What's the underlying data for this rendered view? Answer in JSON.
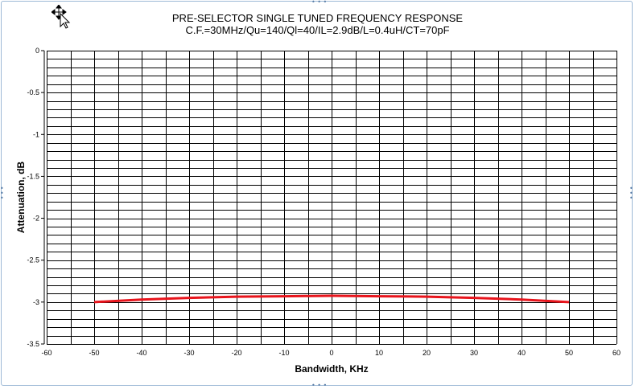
{
  "chart_data": {
    "type": "line",
    "title": "PRE-SELECTOR SINGLE TUNED FREQUENCY RESPONSE",
    "subtitle": "C.F.=30MHz/Qu=140/Ql=40/IL=2.9dB/L=0.4uH/CT=70pF",
    "xlabel": "Bandwidth, KHz",
    "ylabel": "Attenuation, dB",
    "xlim": [
      -60,
      60
    ],
    "ylim": [
      -3.5,
      0
    ],
    "x_ticks": [
      "-60",
      "-50",
      "-40",
      "-30",
      "-20",
      "-10",
      "0",
      "10",
      "20",
      "30",
      "40",
      "50",
      "60"
    ],
    "y_ticks": [
      "0",
      "-0.5",
      "-1",
      "-1.5",
      "-2",
      "-2.5",
      "-3",
      "-3.5"
    ],
    "grid": true,
    "series": [
      {
        "color": "#e8141c",
        "x": [
          -50,
          -40,
          -30,
          -20,
          -10,
          0,
          10,
          20,
          30,
          40,
          50
        ],
        "values": [
          -3.0,
          -2.97,
          -2.95,
          -2.935,
          -2.93,
          -2.925,
          -2.93,
          -2.935,
          -2.95,
          -2.97,
          -3.0
        ]
      }
    ]
  },
  "icons": {
    "move_cursor": "move-cursor-icon",
    "resize_handles": "resize-handle-icon"
  }
}
